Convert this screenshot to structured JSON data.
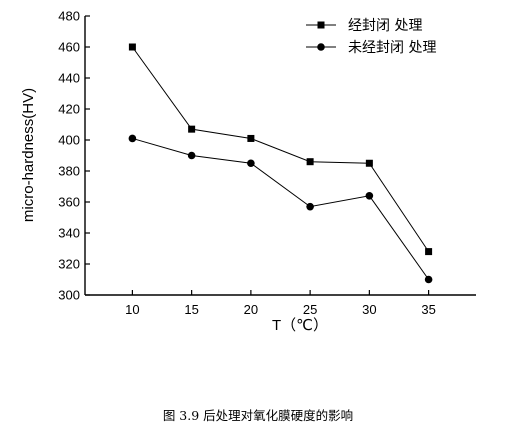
{
  "caption": "图 3.9 后处理对氧化膜硬度的影响",
  "chart_data": {
    "type": "line",
    "title": "",
    "xlabel": "T（℃）",
    "ylabel": "micro-hardness(HV)",
    "xlim": [
      6,
      39
    ],
    "ylim": [
      300,
      480
    ],
    "xticks": [
      10,
      15,
      20,
      25,
      30,
      35
    ],
    "yticks": [
      300,
      320,
      340,
      360,
      380,
      400,
      420,
      440,
      460,
      480
    ],
    "x": [
      10,
      15,
      20,
      25,
      30,
      35
    ],
    "grid": false,
    "legend_position": "top-right",
    "series": [
      {
        "name": "经封闭 处理",
        "marker": "square",
        "color": "#000000",
        "values": [
          460,
          407,
          401,
          386,
          385,
          328
        ]
      },
      {
        "name": "未经封闭 处理",
        "marker": "circle",
        "color": "#000000",
        "values": [
          401,
          390,
          385,
          357,
          364,
          310
        ]
      }
    ]
  }
}
